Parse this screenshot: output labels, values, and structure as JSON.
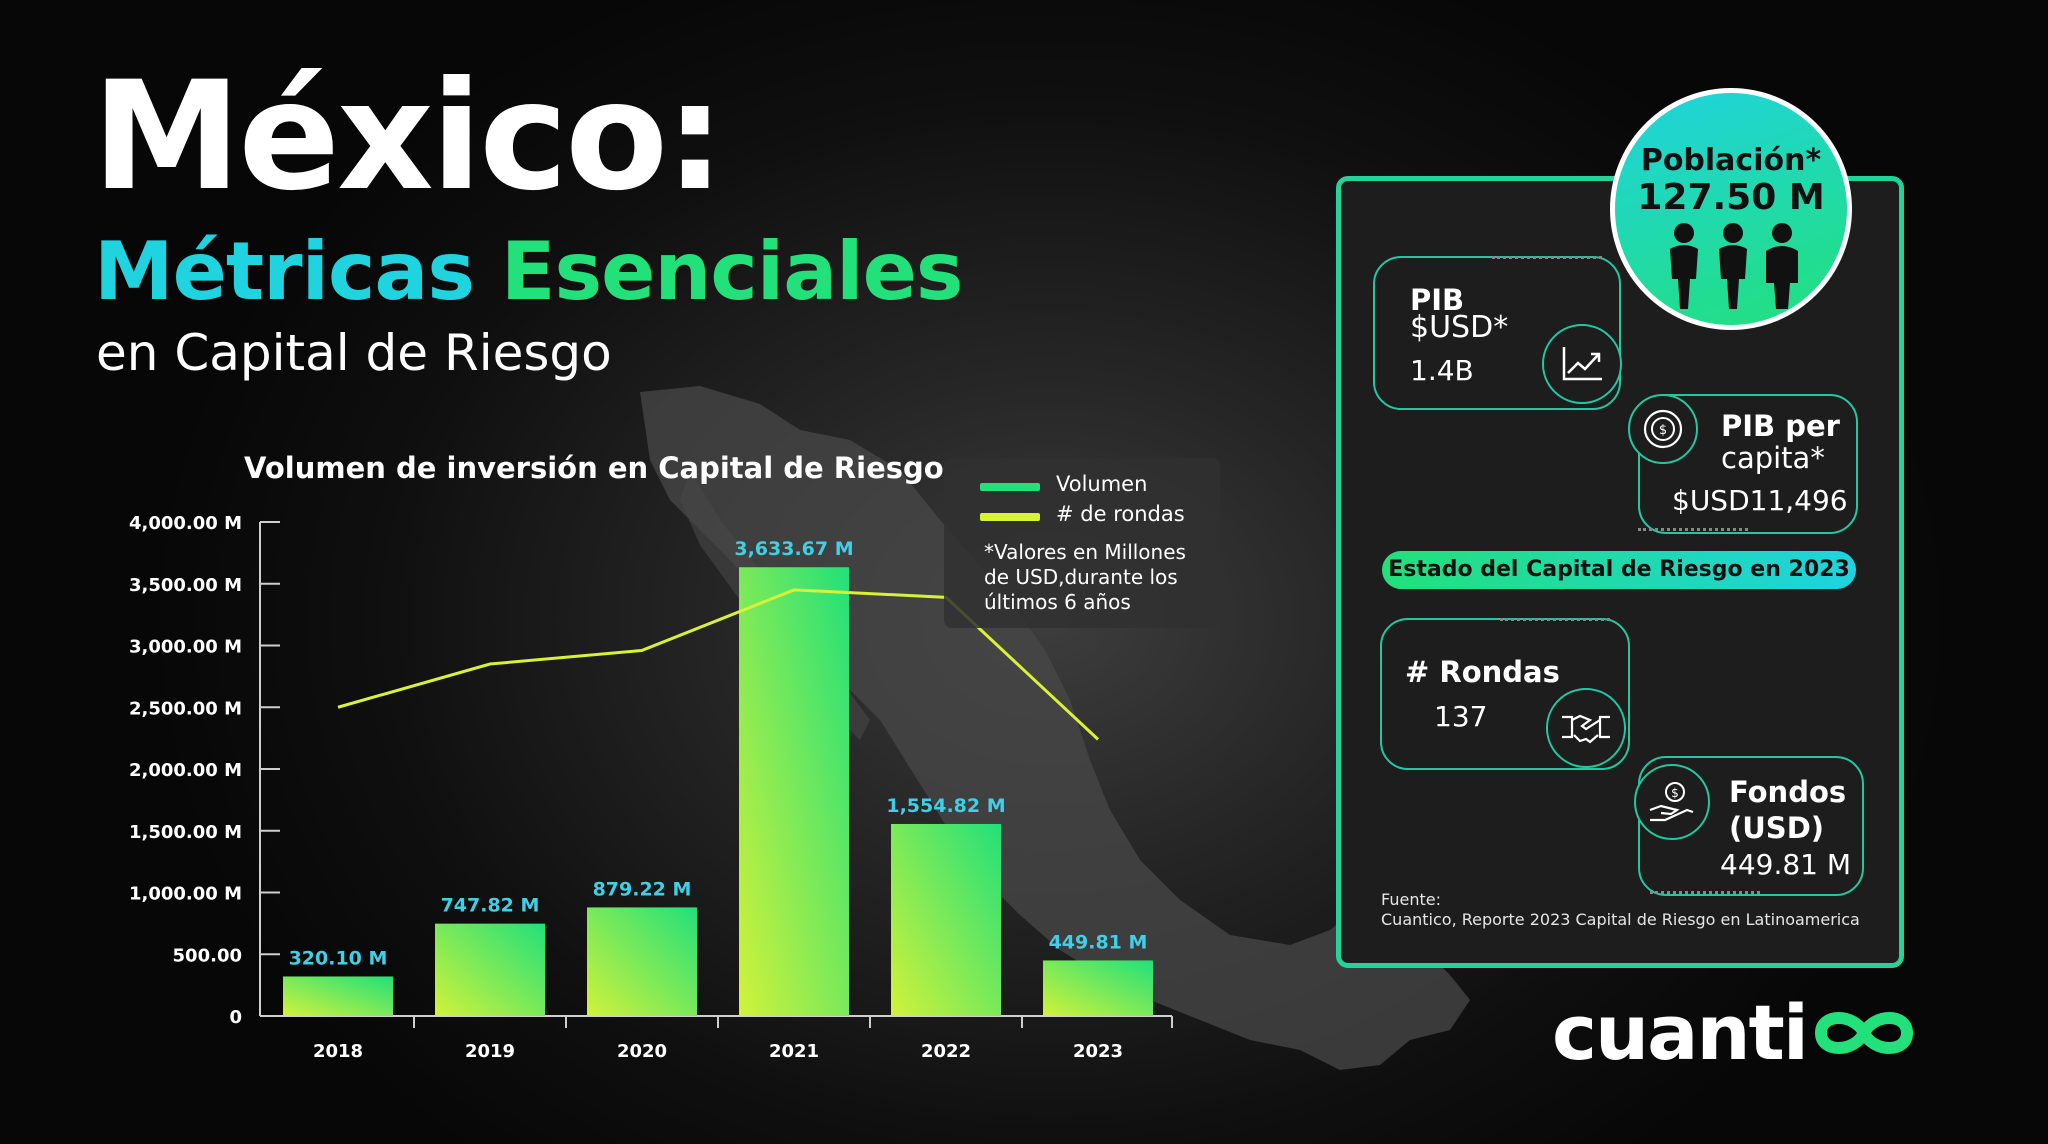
{
  "header": {
    "title": "México:",
    "subtitle_part1": "Métricas",
    "subtitle_part2": "Esenciales",
    "subtitle_line2": "en Capital de Riesgo"
  },
  "colors": {
    "accent_cyan": "#1fd3df",
    "accent_green": "#22e07a",
    "rondas_line": "#d8f235",
    "label_cyan": "#3fd0e6"
  },
  "chart_data": {
    "type": "bar",
    "title": "Volumen de inversión en Capital de Riesgo",
    "categories": [
      "2018",
      "2019",
      "2020",
      "2021",
      "2022",
      "2023"
    ],
    "series": [
      {
        "name": "Volumen",
        "values": [
          320.1,
          747.82,
          879.22,
          3633.67,
          1554.82,
          449.81
        ],
        "data_labels": [
          "320.10 M",
          "747.82 M",
          "879.22 M",
          "3,633.67 M",
          "1,554.82 M",
          "449.81 M"
        ]
      },
      {
        "name": "# de rondas",
        "type": "line",
        "values": [
          2500,
          2850,
          2960,
          3450,
          3390,
          2240
        ]
      }
    ],
    "ylim": [
      0,
      4000
    ],
    "yticks": [
      0,
      500,
      1000,
      1500,
      2000,
      2500,
      3000,
      3500,
      4000
    ],
    "ytick_labels": [
      "0",
      "500.00",
      "1,000.00 M",
      "1,500.00 M",
      "2,000.00 M",
      "2,500.00 M",
      "3,000.00 M",
      "3,500.00 M",
      "4,000.00 M"
    ],
    "legend_position": "top-right",
    "note": "*Valores en Millones de USD,durante los últimos 6 años",
    "grid": false
  },
  "panel": {
    "poblacion": {
      "label": "Población*",
      "value": "127.50 M",
      "icon": "people-icon"
    },
    "pib": {
      "title_line1": "PIB",
      "title_line2": "$USD*",
      "value": "1.4B",
      "icon": "chart-up-icon"
    },
    "pib_per_capita": {
      "title_line1": "PIB per",
      "title_line2": "capita*",
      "value": "$USD11,496",
      "icon": "money-icon"
    },
    "estado_label": "Estado del Capital de Riesgo en 2023",
    "rondas": {
      "title": "# Rondas",
      "value": "137",
      "icon": "handshake-icon"
    },
    "fondos": {
      "title_line1": "Fondos",
      "title_line2": "(USD)",
      "value": "449.81 M",
      "icon": "hand-coin-icon"
    },
    "fuente_label": "Fuente:",
    "fuente_text": "Cuantico, Reporte 2023 Capital de Riesgo en Latinoamerica"
  },
  "logo": {
    "text": "cuanti",
    "icon": "infinity-icon"
  }
}
